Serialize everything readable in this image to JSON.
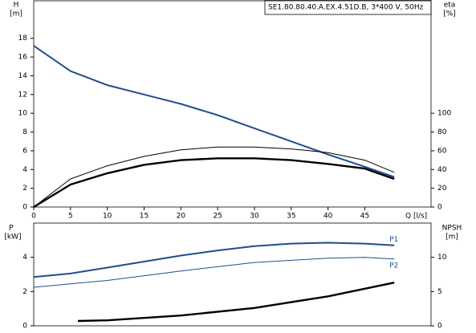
{
  "chart_data": [
    {
      "type": "line",
      "title": "SE1.80.80.40.A.EX.4.51D.B, 3*400 V, 50Hz",
      "ylabel": "H",
      "yunit": "[m]",
      "y2label": "eta",
      "y2unit": "[%]",
      "xlabel": "Q [l/s]",
      "xlim": [
        0,
        54
      ],
      "xticks": [
        0,
        5,
        10,
        15,
        20,
        25,
        30,
        35,
        40,
        45
      ],
      "ylim": [
        0,
        22
      ],
      "yticks": [
        0,
        2,
        4,
        6,
        8,
        10,
        12,
        14,
        16,
        18
      ],
      "y2lim": [
        0,
        220
      ],
      "y2ticks": [
        0,
        20,
        40,
        60,
        80,
        100
      ],
      "grid": false,
      "series": [
        {
          "color": "#1f4e8c",
          "width": 2,
          "axis": "y",
          "x": [
            0,
            5,
            10,
            15,
            20,
            25,
            30,
            35,
            40,
            45,
            49
          ],
          "values": [
            17.2,
            14.5,
            13.0,
            12.0,
            11.0,
            9.8,
            8.4,
            7.0,
            5.6,
            4.3,
            3.2
          ]
        },
        {
          "color": "#000000",
          "width": 1,
          "axis": "y2",
          "x": [
            0,
            5,
            10,
            15,
            20,
            25,
            30,
            35,
            40,
            45,
            49
          ],
          "values": [
            0,
            30,
            44,
            54,
            61,
            64,
            64,
            62,
            58,
            50,
            37
          ]
        },
        {
          "color": "#000000",
          "width": 2.4,
          "axis": "y2",
          "x": [
            0,
            5,
            10,
            15,
            20,
            25,
            30,
            35,
            40,
            45,
            49
          ],
          "values": [
            0,
            24,
            36,
            45,
            50,
            52,
            52,
            50,
            46,
            41,
            30
          ]
        }
      ]
    },
    {
      "type": "line",
      "ylabel": "P",
      "yunit": "[kW]",
      "y2label": "NPSH",
      "y2unit": "[m]",
      "xlim": [
        0,
        54
      ],
      "ylim": [
        0,
        6
      ],
      "yticks": [
        0,
        2,
        4
      ],
      "y2lim": [
        0,
        15
      ],
      "y2ticks": [
        0,
        5,
        10
      ],
      "grid": false,
      "series": [
        {
          "name": "P1",
          "color": "#1f4e8c",
          "width": 2,
          "axis": "y",
          "x": [
            0,
            5,
            10,
            15,
            20,
            25,
            30,
            35,
            40,
            45,
            49
          ],
          "values": [
            2.85,
            3.05,
            3.4,
            3.75,
            4.1,
            4.4,
            4.65,
            4.8,
            4.85,
            4.8,
            4.7
          ]
        },
        {
          "name": "P2",
          "color": "#1f4e8c",
          "width": 1,
          "axis": "y",
          "x": [
            0,
            10,
            20,
            30,
            40,
            45,
            49
          ],
          "values": [
            2.25,
            2.65,
            3.2,
            3.7,
            3.95,
            4.0,
            3.9
          ]
        },
        {
          "color": "#000000",
          "width": 2.4,
          "axis": "y2",
          "x": [
            6,
            10,
            20,
            30,
            40,
            49
          ],
          "values": [
            0.7,
            0.8,
            1.5,
            2.6,
            4.3,
            6.3
          ]
        }
      ]
    }
  ]
}
